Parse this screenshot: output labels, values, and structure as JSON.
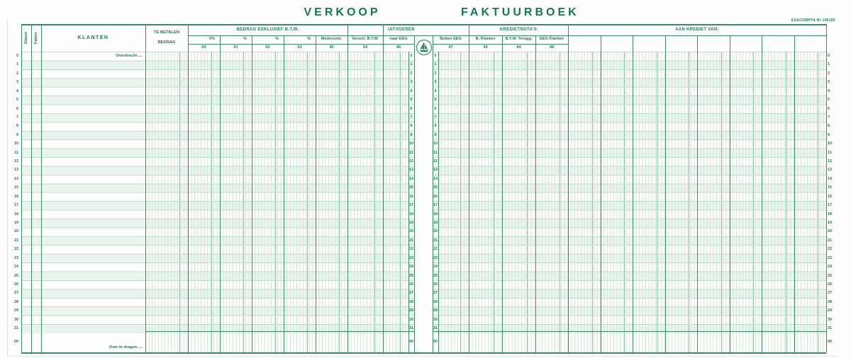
{
  "form": {
    "title_left": "VERKOOP",
    "title_right": "FAKTUURBOEK",
    "ref_number": "EXACOMPTA Nr 146105"
  },
  "colors": {
    "title_green": "#117a4e",
    "text_green": "#1c7c52",
    "border_green": "#3a8a66",
    "row_line_green": "#c0dccc",
    "guide_green": "#d3e9da",
    "cents_line_green": "#8fc0a6",
    "stripe_green": "#eaf3ee"
  },
  "table": {
    "left_columns": {
      "datum": "Datum",
      "faktuur_nr": "Faktnr",
      "klanten": "KLANTEN",
      "te_betalen_line1": "TE BETALEN",
      "te_betalen_line2": "BEDRAG"
    },
    "group_headers": [
      "BEDRAG EXKLUSIEF B.T.W.",
      "UITVOEREN",
      "KREDIETNOTA'S",
      "AAN KREDIET VAN:"
    ],
    "amount_columns": [
      {
        "name": "0%",
        "code": "00"
      },
      {
        "name": "%",
        "code": "01"
      },
      {
        "name": "%",
        "code": "02"
      },
      {
        "name": "%",
        "code": "03"
      },
      {
        "name": "Medecontr.",
        "code": "45"
      },
      {
        "name": "Versch. B.T.W.",
        "code": "54"
      },
      {
        "name": "naar EEG",
        "code": "46"
      },
      {
        "name": "Buiten EEG",
        "code": "47"
      },
      {
        "name": "B. Klanten",
        "code": "49"
      },
      {
        "name": "B.T.W. Terugg.",
        "code": "64"
      },
      {
        "name": "EEG Klanten",
        "code": "48"
      }
    ],
    "body": {
      "carry_forward_label": "Overdracht ....",
      "carry_over_label": "Over te dragen ....",
      "row_numbers": [
        "0",
        "1",
        "2",
        "3",
        "4",
        "5",
        "6",
        "7",
        "8",
        "9",
        "10",
        "11",
        "12",
        "13",
        "14",
        "15",
        "16",
        "17",
        "18",
        "19",
        "20",
        "21",
        "22",
        "23",
        "24",
        "25",
        "26",
        "27",
        "28",
        "29",
        "30",
        "31"
      ],
      "total_row_number": "00"
    }
  }
}
